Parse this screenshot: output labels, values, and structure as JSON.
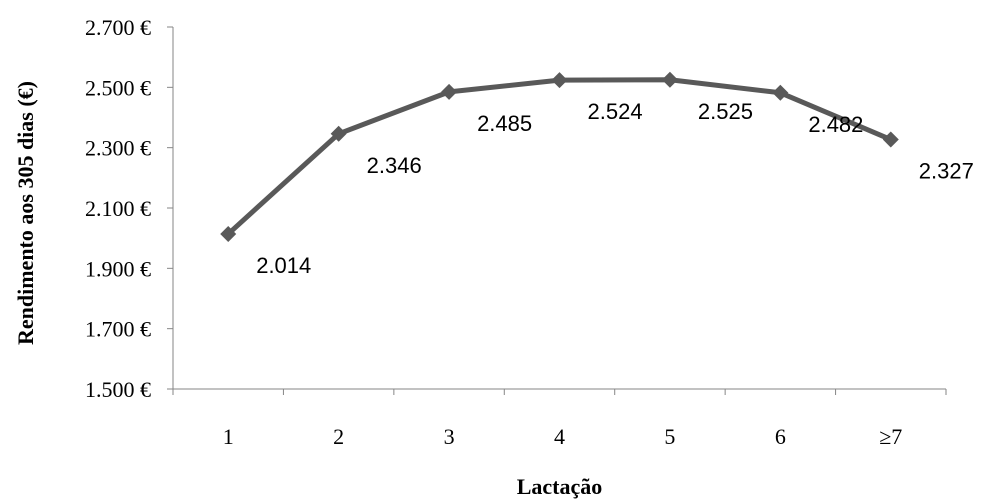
{
  "chart_data": {
    "type": "line",
    "categories": [
      "1",
      "2",
      "3",
      "4",
      "5",
      "6",
      "≥7"
    ],
    "values": [
      2014,
      2346,
      2485,
      2524,
      2525,
      2482,
      2327
    ],
    "data_labels": [
      "2.014",
      "2.346",
      "2.485",
      "2.524",
      "2.525",
      "2.482",
      "2.327"
    ],
    "y_ticks": [
      1500,
      1700,
      1900,
      2100,
      2300,
      2500,
      2700
    ],
    "y_tick_labels": [
      "1.500 €",
      "1.700 €",
      "1.900 €",
      "2.100 €",
      "2.300 €",
      "2.500 €",
      "2.700 €"
    ],
    "ylim": [
      1500,
      2700
    ],
    "xlabel": "Lactação",
    "ylabel": "Rendimento aos 305 dias (€)",
    "title": "",
    "grid": false,
    "legend": "none",
    "series_color": "#595959",
    "marker": "diamond-icon"
  }
}
